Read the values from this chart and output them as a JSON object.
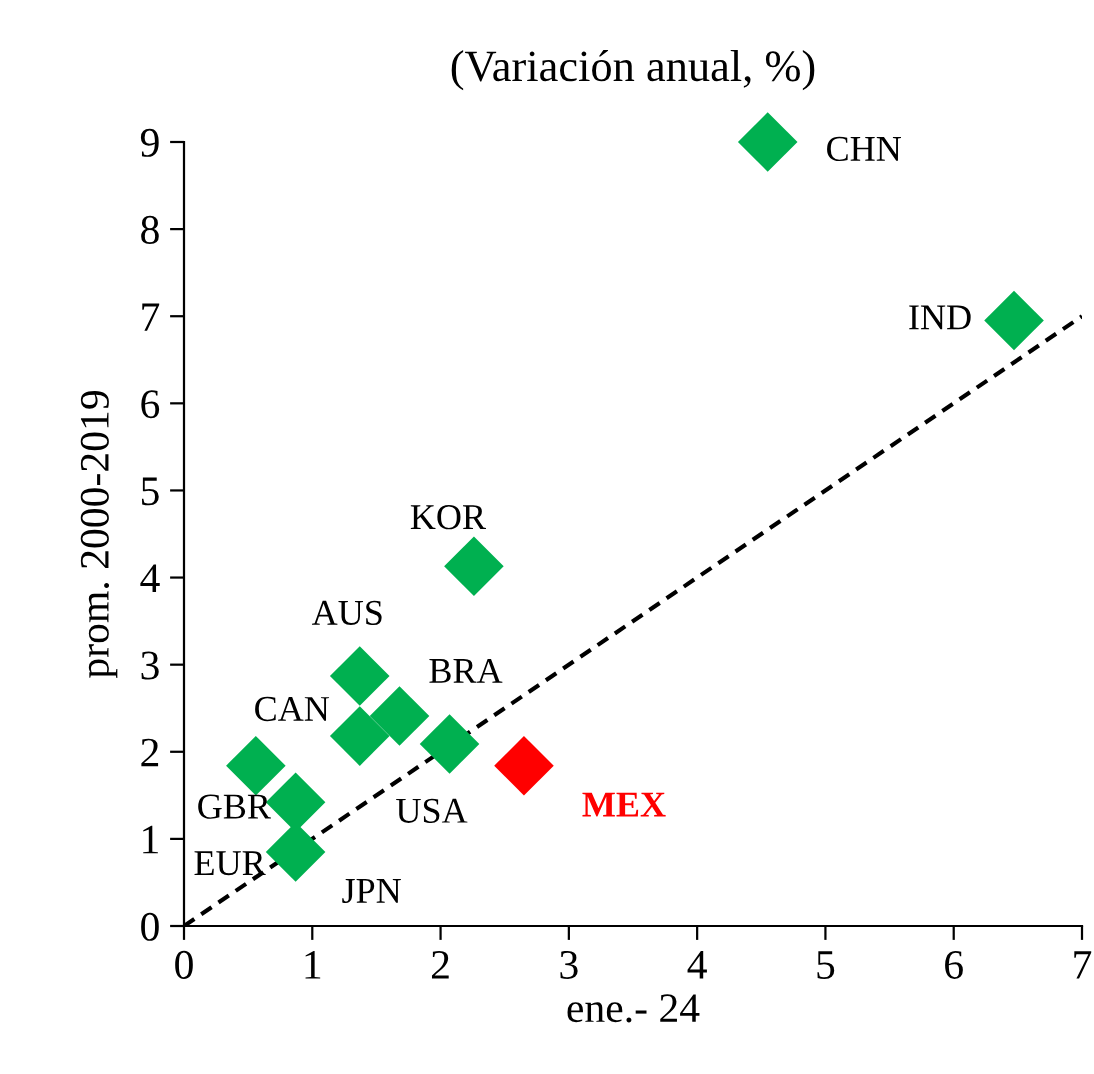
{
  "chart_data": {
    "type": "scatter",
    "title": "(Variación anual, %)",
    "xlabel": "ene.- 24",
    "ylabel": "prom. 2000-2019",
    "xlim": [
      0,
      7
    ],
    "ylim": [
      0,
      9
    ],
    "xticks": [
      0,
      1,
      2,
      3,
      4,
      5,
      6,
      7
    ],
    "yticks": [
      0,
      1,
      2,
      3,
      4,
      5,
      6,
      7,
      8,
      9
    ],
    "grid": false,
    "legend": false,
    "marker": "diamond",
    "series": [
      {
        "color": "#00b050",
        "x": [
          4.55,
          6.47,
          2.26,
          1.37,
          1.68,
          1.37,
          2.07,
          0.56,
          0.87,
          0.87
        ],
        "values": [
          9.0,
          6.95,
          4.13,
          2.87,
          2.41,
          2.18,
          2.09,
          1.84,
          1.42,
          0.85
        ]
      },
      {
        "color": "#ff0000",
        "x": [
          2.65
        ],
        "values": [
          1.84
        ]
      },
      {
        "type": "line",
        "color": "#000000",
        "line_style": "dashed",
        "marker": "none",
        "x": [
          0,
          7
        ],
        "values": [
          0,
          7
        ]
      }
    ],
    "annotations": [
      {
        "text": "CHN",
        "x": 4.55,
        "y": 9.0
      },
      {
        "text": "IND",
        "x": 6.47,
        "y": 6.95
      },
      {
        "text": "KOR",
        "x": 2.26,
        "y": 4.13
      },
      {
        "text": "AUS",
        "x": 1.37,
        "y": 2.87
      },
      {
        "text": "BRA",
        "x": 1.68,
        "y": 2.41
      },
      {
        "text": "CAN",
        "x": 1.37,
        "y": 2.18
      },
      {
        "text": "USA",
        "x": 2.07,
        "y": 2.09
      },
      {
        "text": "GBR",
        "x": 0.56,
        "y": 1.84
      },
      {
        "text": "EUR",
        "x": 0.87,
        "y": 1.42
      },
      {
        "text": "JPN",
        "x": 0.87,
        "y": 0.85
      },
      {
        "text": "MEX",
        "x": 2.65,
        "y": 1.84
      }
    ]
  }
}
